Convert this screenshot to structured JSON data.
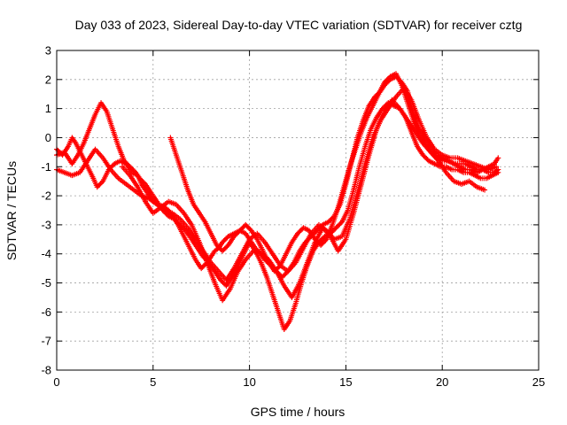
{
  "chart_data": {
    "type": "scatter",
    "title": "Day 033 of 2023, Sidereal Day-to-day VTEC variation (SDTVAR) for receiver cztg",
    "xlabel": "GPS time / hours",
    "ylabel": "SDTVAR / TECUs",
    "xlim": [
      0,
      25
    ],
    "ylim": [
      -8,
      3
    ],
    "x_ticks": [
      0,
      5,
      10,
      15,
      20,
      25
    ],
    "y_ticks": [
      -8,
      -7,
      -6,
      -5,
      -4,
      -3,
      -2,
      -1,
      0,
      1,
      2,
      3
    ],
    "grid": true,
    "legend": "none",
    "marker": "+",
    "color": "#ff0000",
    "series": [
      {
        "x": [
          0.0,
          0.3,
          0.6,
          0.8,
          1.0,
          1.3,
          1.6,
          1.9,
          2.1,
          2.4,
          2.7,
          3.0,
          3.3,
          3.6,
          3.9,
          4.2,
          4.4,
          4.6,
          4.8,
          5.0,
          5.3,
          5.6,
          5.8,
          6.0,
          6.3,
          6.6,
          6.9,
          7.2,
          7.5,
          7.8,
          8.0,
          8.2,
          8.4,
          8.6,
          8.9,
          9.2,
          9.5,
          9.8,
          10.0,
          10.3,
          10.6,
          10.8,
          11.1,
          11.4,
          11.7,
          12.0,
          12.3,
          12.6,
          12.9,
          13.2,
          13.5,
          13.8,
          14.1,
          14.4,
          14.7,
          15.0,
          15.3,
          15.6,
          15.9,
          16.2,
          16.5,
          16.8,
          17.0,
          17.3,
          17.6,
          17.9,
          18.2,
          18.5,
          18.8,
          19.1,
          19.4,
          19.7,
          20.0,
          20.3,
          20.6,
          20.9,
          21.2,
          21.5,
          21.8,
          22.1,
          22.4,
          22.7,
          22.9
        ],
        "y": [
          -0.4,
          -0.6,
          -0.3,
          0.0,
          -0.2,
          -0.6,
          -1.0,
          -1.4,
          -1.7,
          -1.5,
          -1.1,
          -0.9,
          -0.8,
          -0.9,
          -1.2,
          -1.3,
          -1.6,
          -1.8,
          -2.0,
          -2.2,
          -2.3,
          -2.4,
          -2.5,
          -2.7,
          -3.0,
          -3.4,
          -3.8,
          -4.2,
          -4.5,
          -4.3,
          -4.1,
          -3.9,
          -3.8,
          -3.6,
          -3.4,
          -3.3,
          -3.2,
          -3.3,
          -3.5,
          -3.8,
          -4.0,
          -4.2,
          -4.4,
          -4.6,
          -4.8,
          -4.6,
          -4.3,
          -3.9,
          -3.6,
          -3.4,
          -3.2,
          -3.0,
          -2.9,
          -2.7,
          -2.3,
          -1.6,
          -0.8,
          0.0,
          0.6,
          1.1,
          1.4,
          1.6,
          1.8,
          2.0,
          2.1,
          1.9,
          1.6,
          0.8,
          0.3,
          0.0,
          -0.3,
          -0.6,
          -0.7,
          -0.8,
          -0.9,
          -0.9,
          -0.9,
          -1.0,
          -1.1,
          -1.1,
          -1.2,
          -1.2,
          -1.1
        ]
      },
      {
        "x": [
          0.0,
          0.4,
          0.8,
          1.1,
          1.4,
          1.7,
          2.0,
          2.3,
          2.6,
          2.9,
          3.2,
          3.5,
          3.8,
          4.1,
          4.3,
          4.6,
          4.9,
          5.2,
          5.5,
          5.8,
          6.1,
          6.4,
          6.7,
          7.0,
          7.3,
          7.6,
          7.9,
          8.2,
          8.5,
          8.8,
          9.1,
          9.4,
          9.7,
          10.0,
          10.3,
          10.6,
          10.9,
          11.2,
          11.5,
          11.8,
          12.1,
          12.4,
          12.7,
          13.0,
          13.3,
          13.6,
          13.9,
          14.2,
          14.5,
          14.8,
          15.1,
          15.4,
          15.7,
          16.0,
          16.3,
          16.6,
          16.9,
          17.2,
          17.5,
          17.8,
          18.1,
          18.4,
          18.7,
          19.0,
          19.3,
          19.6,
          19.9,
          20.2,
          20.5,
          20.8,
          21.1,
          21.4,
          21.7,
          22.0,
          22.3,
          22.6,
          22.9
        ],
        "y": [
          -0.6,
          -0.5,
          -0.9,
          -0.6,
          -0.2,
          0.3,
          0.8,
          1.2,
          0.9,
          0.3,
          -0.3,
          -0.8,
          -1.0,
          -1.2,
          -1.4,
          -1.6,
          -1.9,
          -2.2,
          -2.5,
          -2.7,
          -2.8,
          -3.0,
          -3.2,
          -3.5,
          -3.8,
          -4.1,
          -4.3,
          -4.6,
          -4.9,
          -5.1,
          -4.8,
          -4.4,
          -4.0,
          -3.6,
          -3.9,
          -4.3,
          -4.8,
          -5.4,
          -6.0,
          -6.6,
          -6.3,
          -5.7,
          -5.0,
          -4.4,
          -3.9,
          -3.6,
          -3.4,
          -3.3,
          -3.1,
          -2.9,
          -2.5,
          -1.8,
          -1.0,
          -0.3,
          0.3,
          0.7,
          1.0,
          1.2,
          1.1,
          1.0,
          0.7,
          0.2,
          -0.3,
          -0.6,
          -0.8,
          -0.9,
          -1.0,
          -1.0,
          -1.1,
          -1.1,
          -1.2,
          -1.2,
          -1.3,
          -1.4,
          -1.4,
          -1.3,
          -1.2
        ]
      },
      {
        "x": [
          0.0,
          0.4,
          0.8,
          1.2,
          1.6,
          2.0,
          2.4,
          2.8,
          3.2,
          3.6,
          4.0,
          4.4,
          4.8,
          5.2,
          5.6,
          6.0,
          6.4,
          6.8,
          7.2,
          7.6,
          8.0,
          8.4,
          8.8,
          9.2,
          9.6,
          10.0,
          10.4,
          10.8,
          11.2,
          11.6,
          12.0,
          12.4,
          12.8,
          13.2,
          13.6,
          14.0,
          14.4,
          14.8,
          15.2,
          15.6,
          16.0,
          16.4,
          16.8,
          17.2,
          17.6,
          18.0,
          18.4,
          18.8,
          19.2,
          19.6,
          20.0,
          20.4,
          20.8,
          21.2,
          21.6,
          22.0,
          22.4,
          22.8
        ],
        "y": [
          -1.1,
          -1.2,
          -1.3,
          -1.2,
          -0.8,
          -0.4,
          -0.7,
          -1.1,
          -1.4,
          -1.6,
          -1.8,
          -2.0,
          -2.1,
          -2.3,
          -2.5,
          -2.6,
          -2.8,
          -3.1,
          -3.5,
          -3.9,
          -4.3,
          -4.6,
          -4.9,
          -4.5,
          -4.0,
          -3.5,
          -3.3,
          -3.6,
          -4.0,
          -4.4,
          -4.6,
          -4.3,
          -3.8,
          -3.3,
          -3.0,
          -3.2,
          -3.5,
          -3.4,
          -2.8,
          -1.9,
          -0.9,
          0.0,
          0.6,
          1.0,
          1.4,
          1.7,
          1.3,
          0.6,
          0.0,
          -0.4,
          -0.6,
          -0.7,
          -0.7,
          -0.8,
          -0.9,
          -1.0,
          -1.1,
          -1.0
        ]
      },
      {
        "x": [
          5.9,
          6.2,
          6.5,
          6.8,
          7.1,
          7.4,
          7.7,
          8.0,
          8.3,
          8.6,
          8.9,
          9.2,
          9.5,
          9.8,
          10.1,
          10.4,
          10.7,
          11.0,
          11.3,
          11.6,
          11.9,
          12.2,
          12.5,
          12.8,
          13.1,
          13.4,
          13.7,
          14.0,
          14.3,
          14.6,
          14.9,
          15.2,
          15.5,
          15.8,
          16.1,
          16.4,
          16.7,
          17.0,
          17.3,
          17.6,
          17.9,
          18.2,
          18.5,
          18.8,
          19.1,
          19.4,
          19.7,
          20.0,
          20.3,
          20.6,
          20.9,
          21.2,
          21.5,
          21.8,
          22.1,
          22.4,
          22.7,
          22.9
        ],
        "y": [
          0.0,
          -0.6,
          -1.2,
          -1.8,
          -2.3,
          -2.6,
          -2.9,
          -3.3,
          -3.7,
          -3.9,
          -3.7,
          -3.4,
          -3.2,
          -3.0,
          -3.2,
          -3.5,
          -3.9,
          -4.3,
          -4.6,
          -4.4,
          -4.0,
          -3.6,
          -3.3,
          -3.1,
          -3.2,
          -3.5,
          -3.7,
          -3.5,
          -3.0,
          -2.4,
          -1.7,
          -1.0,
          -0.4,
          0.2,
          0.7,
          1.1,
          1.5,
          1.9,
          2.1,
          2.2,
          1.8,
          1.2,
          0.6,
          0.1,
          -0.2,
          -0.5,
          -0.7,
          -0.8,
          -0.8,
          -0.9,
          -1.0,
          -1.1,
          -1.1,
          -1.2,
          -1.1,
          -1.0,
          -0.9,
          -0.7
        ]
      },
      {
        "x": [
          3.4,
          3.8,
          4.2,
          4.6,
          5.0,
          5.4,
          5.8,
          6.2,
          6.6,
          7.0,
          7.4,
          7.8,
          8.2,
          8.6,
          9.0,
          9.4,
          9.8,
          10.2,
          10.6,
          11.0,
          11.4,
          11.8,
          12.2,
          12.6,
          13.0,
          13.4,
          13.8,
          14.2,
          14.6,
          15.0,
          15.4,
          15.8,
          16.2,
          16.6,
          17.0,
          17.4,
          17.8,
          18.2,
          18.6,
          19.0,
          19.4,
          19.8,
          20.2,
          20.6,
          21.0,
          21.4,
          21.8,
          22.2
        ],
        "y": [
          -1.0,
          -1.3,
          -1.7,
          -2.2,
          -2.6,
          -2.4,
          -2.2,
          -2.3,
          -2.6,
          -3.0,
          -3.6,
          -4.3,
          -5.0,
          -5.6,
          -5.2,
          -4.6,
          -4.2,
          -3.9,
          -4.0,
          -4.2,
          -4.6,
          -5.1,
          -5.5,
          -5.0,
          -4.3,
          -3.6,
          -3.1,
          -3.4,
          -3.9,
          -3.5,
          -2.6,
          -1.6,
          -0.6,
          0.3,
          0.9,
          1.3,
          1.0,
          0.6,
          0.2,
          -0.2,
          -0.5,
          -0.8,
          -1.2,
          -1.5,
          -1.6,
          -1.5,
          -1.7,
          -1.8
        ]
      }
    ]
  }
}
